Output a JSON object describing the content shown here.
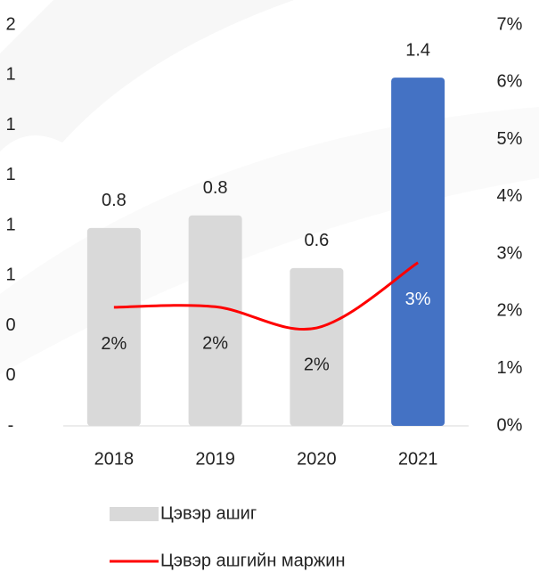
{
  "chart_data": {
    "type": "bar+line",
    "categories": [
      "2018",
      "2019",
      "2020",
      "2021"
    ],
    "series": [
      {
        "name": "Цэвэр ашиг",
        "type": "bar",
        "color": "#d9d9d9",
        "colors": [
          "#d9d9d9",
          "#d9d9d9",
          "#d9d9d9",
          "#4472c4"
        ],
        "values": [
          0.79,
          0.84,
          0.63,
          1.39
        ],
        "value_labels": [
          "0.8",
          "0.8",
          "0.6",
          "1.4"
        ]
      },
      {
        "name": "Цэвэр ашгийн маржин",
        "type": "line",
        "axis": "y2",
        "color": "#ff0000",
        "values": [
          2.07,
          2.08,
          1.71,
          2.85
        ],
        "value_labels": [
          "2%",
          "2%",
          "2%",
          "3%"
        ]
      }
    ],
    "ylim": [
      0,
      1.6
    ],
    "yticks": [
      {
        "value": 0,
        "label": "-"
      },
      {
        "value": 0.2,
        "label": "0"
      },
      {
        "value": 0.4,
        "label": "0"
      },
      {
        "value": 0.6,
        "label": "1"
      },
      {
        "value": 0.8,
        "label": "1"
      },
      {
        "value": 1.0,
        "label": "1"
      },
      {
        "value": 1.2,
        "label": "1"
      },
      {
        "value": 1.4,
        "label": "1"
      },
      {
        "value": 1.6,
        "label": "2"
      }
    ],
    "y2lim": [
      0,
      7
    ],
    "y2ticks": [
      {
        "value": 0,
        "label": "0%"
      },
      {
        "value": 1,
        "label": "1%"
      },
      {
        "value": 2,
        "label": "2%"
      },
      {
        "value": 3,
        "label": "3%"
      },
      {
        "value": 4,
        "label": "4%"
      },
      {
        "value": 5,
        "label": "5%"
      },
      {
        "value": 6,
        "label": "6%"
      },
      {
        "value": 7,
        "label": "7%"
      }
    ],
    "legend": "bottom"
  }
}
